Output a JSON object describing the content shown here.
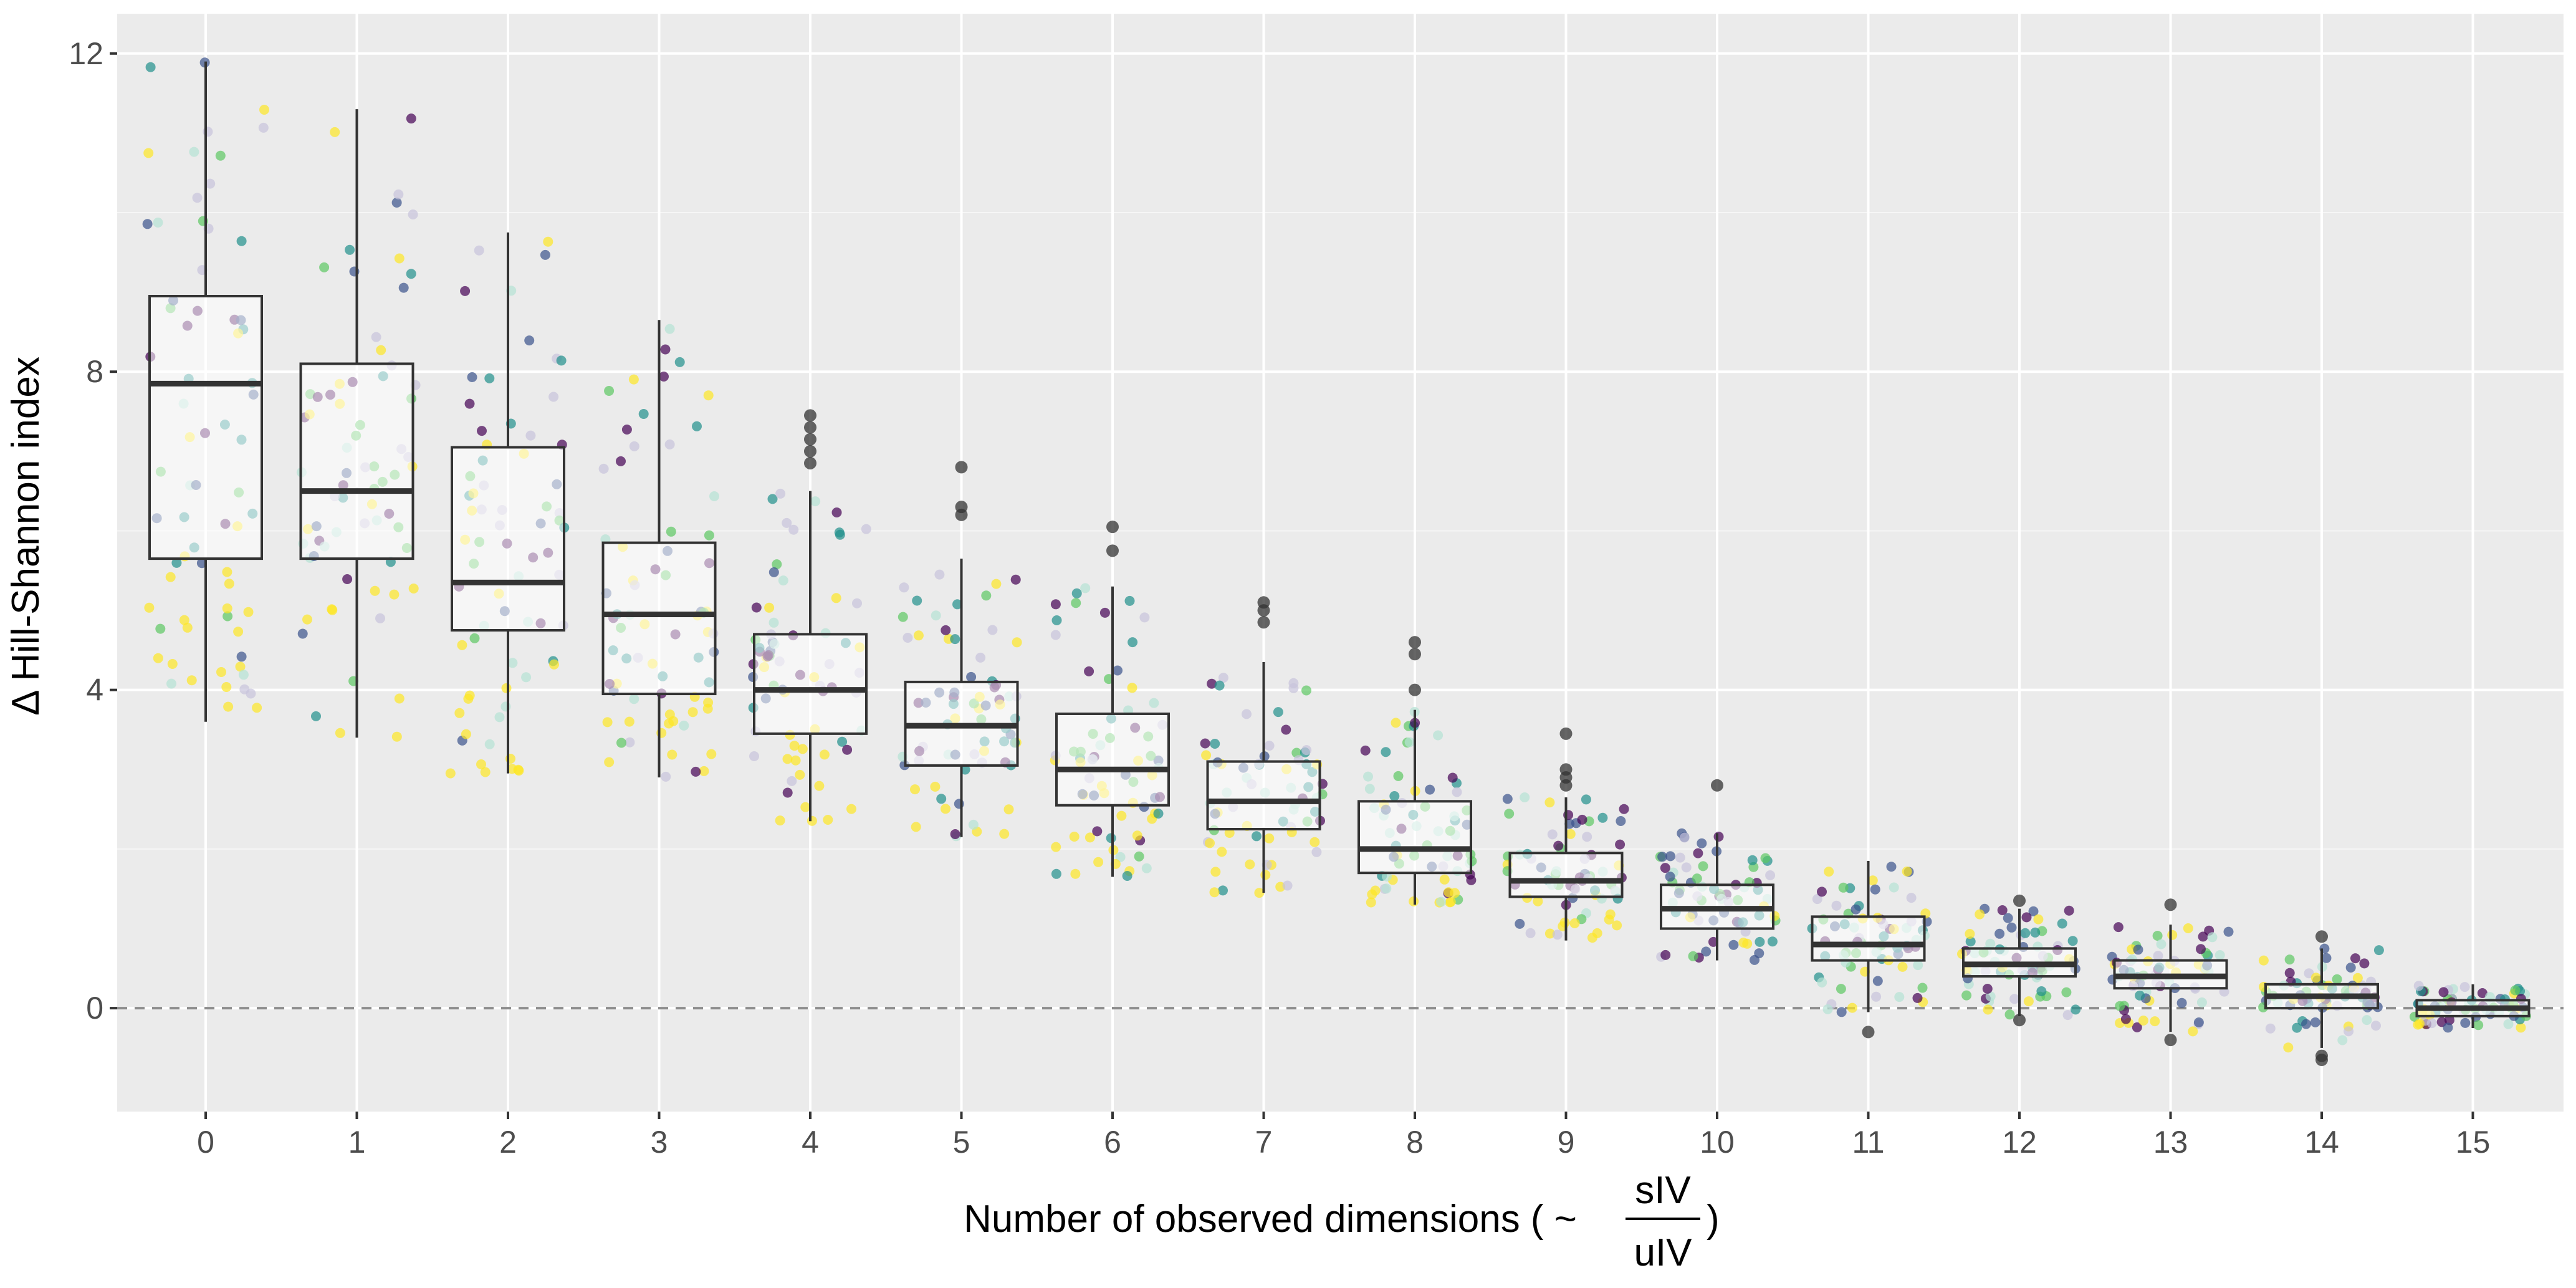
{
  "chart_data": {
    "type": "box",
    "xlabel_prefix": "Number of observed dimensions ( ~",
    "xlabel_fraction": {
      "numerator": "sIV",
      "denominator": "uIV"
    },
    "xlabel_suffix": ")",
    "ylabel": "Δ Hill-Shannon index",
    "categories": [
      "0",
      "1",
      "2",
      "3",
      "4",
      "5",
      "6",
      "7",
      "8",
      "9",
      "10",
      "11",
      "12",
      "13",
      "14",
      "15"
    ],
    "y_ticks": [
      0,
      4,
      8,
      12
    ],
    "ylim": [
      -1.3,
      12.5
    ],
    "reference_line": 0,
    "grid": true,
    "boxes": [
      {
        "category": "0",
        "whisker_low": 3.6,
        "q1": 5.65,
        "median": 7.85,
        "q3": 8.95,
        "whisker_high": 11.9,
        "outliers": []
      },
      {
        "category": "1",
        "whisker_low": 3.4,
        "q1": 5.65,
        "median": 6.5,
        "q3": 8.1,
        "whisker_high": 11.3,
        "outliers": []
      },
      {
        "category": "2",
        "whisker_low": 2.95,
        "q1": 4.75,
        "median": 5.35,
        "q3": 7.05,
        "whisker_high": 9.75,
        "outliers": []
      },
      {
        "category": "3",
        "whisker_low": 2.9,
        "q1": 3.95,
        "median": 4.95,
        "q3": 5.85,
        "whisker_high": 8.65,
        "outliers": []
      },
      {
        "category": "4",
        "whisker_low": 2.35,
        "q1": 3.45,
        "median": 4.0,
        "q3": 4.7,
        "whisker_high": 6.5,
        "outliers": [
          6.85,
          7.0,
          7.15,
          7.3,
          7.45
        ]
      },
      {
        "category": "5",
        "whisker_low": 2.15,
        "q1": 3.05,
        "median": 3.55,
        "q3": 4.1,
        "whisker_high": 5.65,
        "outliers": [
          6.2,
          6.3,
          6.8
        ]
      },
      {
        "category": "6",
        "whisker_low": 1.65,
        "q1": 2.55,
        "median": 3.0,
        "q3": 3.7,
        "whisker_high": 5.3,
        "outliers": [
          5.75,
          6.05
        ]
      },
      {
        "category": "7",
        "whisker_low": 1.45,
        "q1": 2.25,
        "median": 2.6,
        "q3": 3.1,
        "whisker_high": 4.35,
        "outliers": [
          4.85,
          5.0,
          5.1
        ]
      },
      {
        "category": "8",
        "whisker_low": 1.3,
        "q1": 1.7,
        "median": 2.0,
        "q3": 2.6,
        "whisker_high": 3.75,
        "outliers": [
          4.0,
          4.45,
          4.6
        ]
      },
      {
        "category": "9",
        "whisker_low": 0.85,
        "q1": 1.4,
        "median": 1.6,
        "q3": 1.95,
        "whisker_high": 2.65,
        "outliers": [
          2.8,
          2.9,
          3.0,
          3.45
        ]
      },
      {
        "category": "10",
        "whisker_low": 0.6,
        "q1": 1.0,
        "median": 1.25,
        "q3": 1.55,
        "whisker_high": 2.2,
        "outliers": [
          2.8
        ]
      },
      {
        "category": "11",
        "whisker_low": -0.05,
        "q1": 0.6,
        "median": 0.8,
        "q3": 1.15,
        "whisker_high": 1.85,
        "outliers": [
          -0.3
        ]
      },
      {
        "category": "12",
        "whisker_low": -0.1,
        "q1": 0.4,
        "median": 0.55,
        "q3": 0.75,
        "whisker_high": 1.25,
        "outliers": [
          -0.15,
          1.35
        ]
      },
      {
        "category": "13",
        "whisker_low": -0.3,
        "q1": 0.25,
        "median": 0.4,
        "q3": 0.6,
        "whisker_high": 1.05,
        "outliers": [
          -0.4,
          1.3
        ]
      },
      {
        "category": "14",
        "whisker_low": -0.5,
        "q1": 0.0,
        "median": 0.15,
        "q3": 0.3,
        "whisker_high": 0.75,
        "outliers": [
          -0.65,
          -0.6,
          0.9
        ]
      },
      {
        "category": "15",
        "whisker_low": -0.25,
        "q1": -0.1,
        "median": 0.0,
        "q3": 0.1,
        "whisker_high": 0.3,
        "outliers": []
      }
    ],
    "point_colors": [
      "#440154",
      "#3b528b",
      "#21908c",
      "#5dc863",
      "#fde725",
      "#c8c3dc",
      "#b5e3d4"
    ]
  }
}
